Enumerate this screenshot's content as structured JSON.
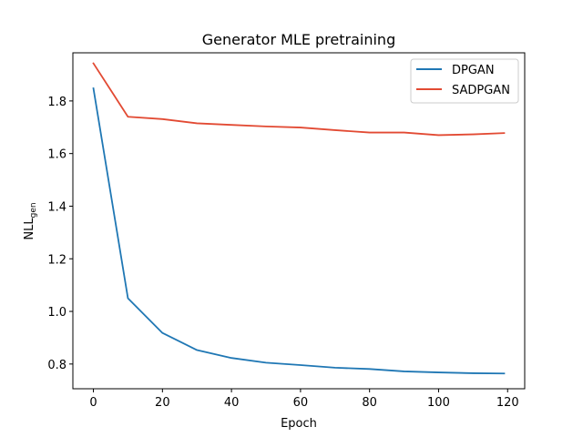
{
  "chart_data": {
    "type": "line",
    "title": "Generator MLE pretraining",
    "xlabel": "Epoch",
    "ylabel_main": "NLL",
    "ylabel_sub": "gen",
    "xlim": [
      -5.95,
      124.95
    ],
    "ylim": [
      0.706,
      1.983
    ],
    "x_ticks": [
      0,
      20,
      40,
      60,
      80,
      100,
      120
    ],
    "y_ticks": [
      0.8,
      1.0,
      1.2,
      1.4,
      1.6,
      1.8
    ],
    "y_tick_labels": [
      "0.8",
      "1.0",
      "1.2",
      "1.4",
      "1.6",
      "1.8"
    ],
    "x": [
      0,
      10,
      20,
      30,
      40,
      50,
      60,
      70,
      80,
      90,
      100,
      110,
      119
    ],
    "series": [
      {
        "name": "DPGAN",
        "color": "#1f77b4",
        "values": [
          1.848,
          1.05,
          0.918,
          0.853,
          0.823,
          0.805,
          0.796,
          0.786,
          0.781,
          0.772,
          0.768,
          0.765,
          0.764
        ]
      },
      {
        "name": "SADPGAN",
        "color": "#e24a33",
        "values": [
          1.943,
          1.74,
          1.731,
          1.715,
          1.709,
          1.703,
          1.699,
          1.689,
          1.68,
          1.68,
          1.67,
          1.673,
          1.678
        ]
      }
    ],
    "legend_position": "top-right"
  }
}
